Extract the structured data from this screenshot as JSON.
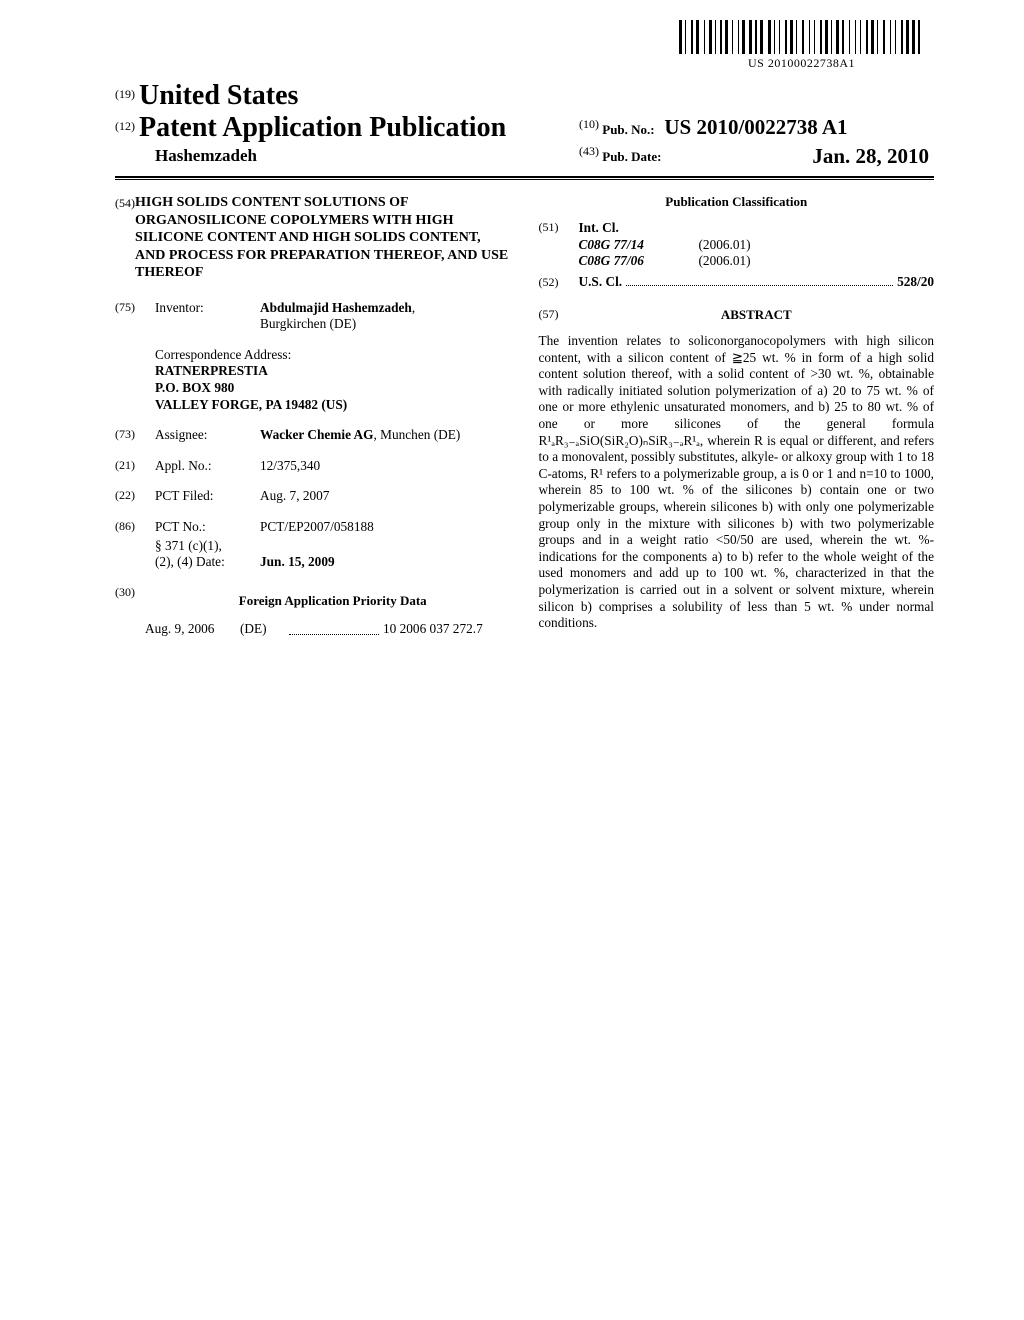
{
  "barcode_text": "US 20100022738A1",
  "header": {
    "inid19": "(19)",
    "country": "United States",
    "inid12": "(12)",
    "pub_title": "Patent Application Publication",
    "inventor_header": "Hashemzadeh",
    "inid10": "(10)",
    "pubno_label": "Pub. No.:",
    "pubno": "US 2010/0022738 A1",
    "inid43": "(43)",
    "pubdate_label": "Pub. Date:",
    "pubdate": "Jan. 28, 2010"
  },
  "left": {
    "inid54": "(54)",
    "title": "HIGH SOLIDS CONTENT SOLUTIONS OF ORGANOSILICONE COPOLYMERS WITH HIGH SILICONE CONTENT AND HIGH SOLIDS CONTENT, AND PROCESS FOR PREPARATION THEREOF, AND USE THEREOF",
    "inid75": "(75)",
    "inventor_label": "Inventor:",
    "inventor_value": "Abdulmajid Hashemzadeh",
    "inventor_loc": "Burgkirchen (DE)",
    "corr_label": "Correspondence Address:",
    "corr_l1": "RATNERPRESTIA",
    "corr_l2": "P.O. BOX 980",
    "corr_l3": "VALLEY FORGE, PA 19482 (US)",
    "inid73": "(73)",
    "assignee_label": "Assignee:",
    "assignee_value": "Wacker Chemie AG",
    "assignee_loc": ", Munchen (DE)",
    "inid21": "(21)",
    "applno_label": "Appl. No.:",
    "applno": "12/375,340",
    "inid22": "(22)",
    "pctfiled_label": "PCT Filed:",
    "pctfiled": "Aug. 7, 2007",
    "inid86": "(86)",
    "pctno_label": "PCT No.:",
    "pctno": "PCT/EP2007/058188",
    "s371_l1": "§ 371 (c)(1),",
    "s371_l2": "(2), (4) Date:",
    "s371_date": "Jun. 15, 2009",
    "inid30": "(30)",
    "priority_head": "Foreign Application Priority Data",
    "priority_date": "Aug. 9, 2006",
    "priority_cc": "(DE)",
    "priority_num": "10 2006 037 272.7"
  },
  "right": {
    "pubclass_head": "Publication Classification",
    "inid51": "(51)",
    "intcl_label": "Int. Cl.",
    "intcl1_code": "C08G  77/14",
    "intcl1_ver": "(2006.01)",
    "intcl2_code": "C08G  77/06",
    "intcl2_ver": "(2006.01)",
    "inid52": "(52)",
    "uscl_label": "U.S. Cl.",
    "uscl_val": "528/20",
    "inid57": "(57)",
    "abstract_head": "ABSTRACT",
    "abstract_body": "The invention relates to soliconorganocopolymers with high silicon content, with a silicon content of ≧25 wt. % in form of a high solid content solution thereof, with a solid content of >30 wt. %, obtainable with radically initiated solution polymerization of a) 20 to 75 wt. % of one or more ethylenic unsaturated monomers, and b) 25 to 80 wt. % of one or more silicones of the general formula R¹ₐR₃₋ₐSiO(SiR₂O)ₙSiR₃₋ₐR¹ₐ, wherein R is equal or different, and refers to a monovalent, possibly substitutes, alkyle- or alkoxy group with 1 to 18 C-atoms, R¹ refers to a polymerizable group, a is 0 or 1 and n=10 to 1000, wherein 85 to 100 wt. % of the silicones b) contain one or two polymerizable groups, wherein silicones b) with only one polymerizable group only in the mixture with silicones b) with two polymerizable groups and in a weight ratio <50/50 are used, wherein the wt. %-indications for the components a) to b) refer to the whole weight of the used monomers and add up to 100 wt. %, characterized in that the polymerization is carried out in a solvent or solvent mixture, wherein silicon b) comprises a solubility of less than 5 wt. % under normal conditions."
  },
  "barcode_widths": [
    3,
    1,
    1,
    3,
    2,
    1,
    3,
    3,
    1,
    2,
    3,
    1,
    1,
    2,
    2,
    1,
    3,
    2,
    1,
    3,
    1,
    1,
    3,
    2,
    3,
    1,
    2,
    1,
    3,
    3,
    3,
    1,
    1,
    2,
    1,
    3,
    2,
    1,
    3,
    1,
    1,
    3,
    2,
    3,
    1,
    2,
    1,
    3,
    2,
    1,
    3,
    1,
    1,
    2,
    3,
    1,
    2,
    3,
    1,
    3,
    1,
    2,
    1,
    3,
    2,
    1,
    3,
    1,
    1,
    3,
    2,
    3,
    1,
    2,
    1,
    3,
    2,
    1,
    3,
    1,
    3,
    1,
    2,
    3
  ]
}
